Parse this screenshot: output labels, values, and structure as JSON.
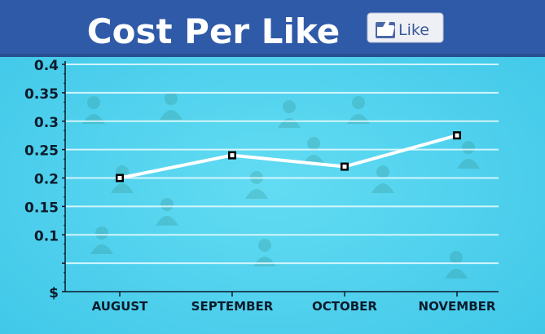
{
  "header": {
    "title": "Cost Per Like",
    "like_button_label": "Like"
  },
  "colors": {
    "header_bg": "#2f5aa8",
    "plot_bg": "#52d3ee",
    "line": "#ffffff",
    "gridline": "#e9fbff",
    "axis": "#0b1b2b"
  },
  "chart_data": {
    "type": "line",
    "title": "Cost Per Like",
    "xlabel": "",
    "ylabel": "",
    "categories": [
      "AUGUST",
      "SEPTEMBER",
      "OCTOBER",
      "NOVEMBER"
    ],
    "series": [
      {
        "values": [
          0.2,
          0.24,
          0.22,
          0.275
        ]
      }
    ],
    "yticks": [
      0,
      0.05,
      0.1,
      0.15,
      0.2,
      0.25,
      0.3,
      0.35,
      0.4
    ],
    "ytick_labels": [
      "$",
      "",
      "0.1",
      "0.15",
      "0.2",
      "0.25",
      "0.3",
      "0.35",
      "0.4"
    ],
    "ylim": [
      0,
      0.4
    ],
    "grid": true,
    "legend": "none"
  }
}
